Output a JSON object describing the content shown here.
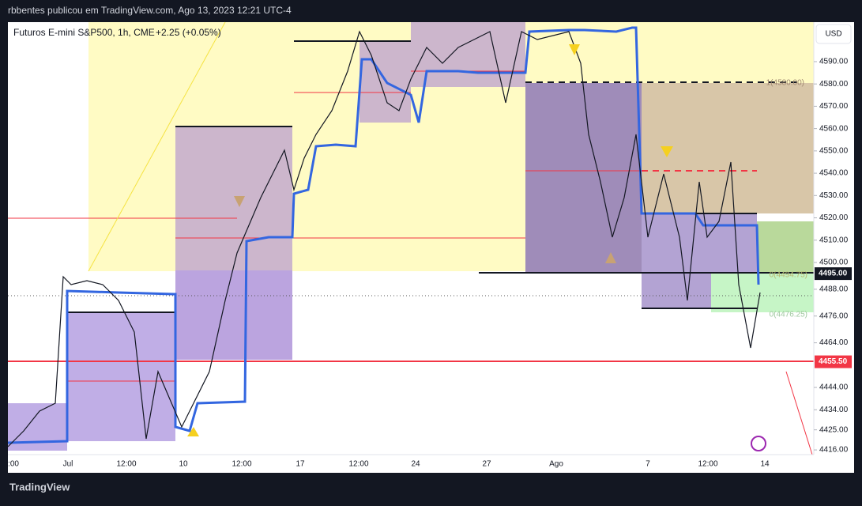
{
  "header": {
    "publisher": "rbbentes publicou em TradingView.com, Ago 13, 2023 12:21 UTC-4"
  },
  "chart": {
    "symbol": "Futuros E-mini S&P500, 1h, CME",
    "change": "+2.25 (+0.05%)",
    "currency": "USD",
    "price_axis": {
      "ylim": [
        4413.9,
        4607.7
      ],
      "ticks": [
        {
          "value": 4590,
          "label": "4590.00"
        },
        {
          "value": 4580,
          "label": "4580.00"
        },
        {
          "value": 4570,
          "label": "4570.00"
        },
        {
          "value": 4560,
          "label": "4560.00"
        },
        {
          "value": 4550,
          "label": "4550.00"
        },
        {
          "value": 4540,
          "label": "4540.00"
        },
        {
          "value": 4530,
          "label": "4530.00"
        },
        {
          "value": 4520,
          "label": "4520.00"
        },
        {
          "value": 4510,
          "label": "4510.00"
        },
        {
          "value": 4500,
          "label": "4500.00"
        },
        {
          "value": 4488,
          "label": "4488.00"
        },
        {
          "value": 4476,
          "label": "4476.00"
        },
        {
          "value": 4464,
          "label": "4464.00"
        },
        {
          "value": 4444,
          "label": "4444.00"
        },
        {
          "value": 4434,
          "label": "4434.00"
        },
        {
          "value": 4425,
          "label": "4425.00"
        },
        {
          "value": 4416,
          "label": "4416.00"
        }
      ]
    },
    "time_axis": [
      ":00",
      "Jul",
      "12:00",
      "10",
      "12:00",
      "17",
      "12:00",
      "24",
      "27",
      "Ago",
      "7",
      "12:00",
      "14"
    ],
    "tags": [
      {
        "value": 4495,
        "label": "4495.00",
        "color": "#131722"
      },
      {
        "value": 4455.5,
        "label": "4455.50",
        "color": "#f23645"
      }
    ],
    "level_labels": [
      "1(4580.00)",
      "0(4494.75)",
      "0(4476.25)"
    ]
  },
  "footer": {
    "brand": "TradingView"
  }
}
